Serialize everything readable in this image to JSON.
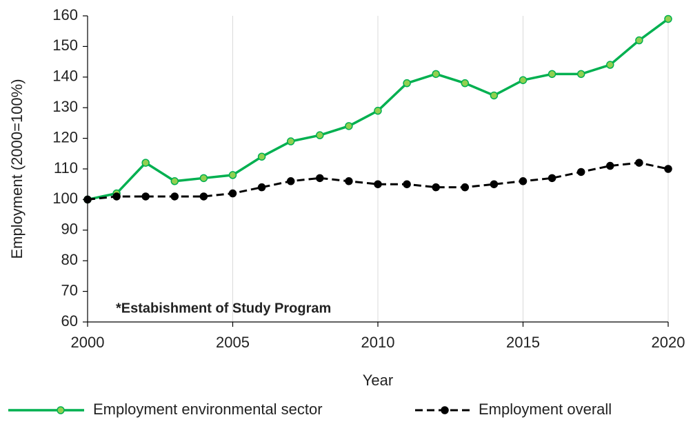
{
  "chart_data": {
    "type": "line",
    "x_label": "Year",
    "y_label": "Employment (2000=100%)",
    "annotation": "*Estabishment of Study Program",
    "x": [
      2000,
      2001,
      2002,
      2003,
      2004,
      2005,
      2006,
      2007,
      2008,
      2009,
      2010,
      2011,
      2012,
      2013,
      2014,
      2015,
      2016,
      2017,
      2018,
      2019,
      2020
    ],
    "series": [
      {
        "name": "Employment environmental sector",
        "color": "#00b050",
        "marker_color": "#92d050",
        "dashed": false,
        "values": [
          100,
          102,
          112,
          106,
          107,
          108,
          114,
          119,
          121,
          124,
          129,
          138,
          141,
          138,
          134,
          139,
          141,
          141,
          144,
          152,
          159
        ]
      },
      {
        "name": "Employment overall",
        "color": "#000000",
        "marker_color": "#000000",
        "dashed": true,
        "values": [
          100,
          101,
          101,
          101,
          101,
          102,
          104,
          106,
          107,
          106,
          105,
          105,
          104,
          104,
          105,
          106,
          107,
          109,
          111,
          112,
          110
        ]
      }
    ],
    "xlim": [
      2000,
      2020
    ],
    "xticks": [
      2000,
      2005,
      2010,
      2015,
      2020
    ],
    "ylim": [
      60,
      160
    ],
    "yticks": [
      60,
      70,
      80,
      90,
      100,
      110,
      120,
      130,
      140,
      150,
      160
    ],
    "grid": "x",
    "legend": "bottom"
  }
}
